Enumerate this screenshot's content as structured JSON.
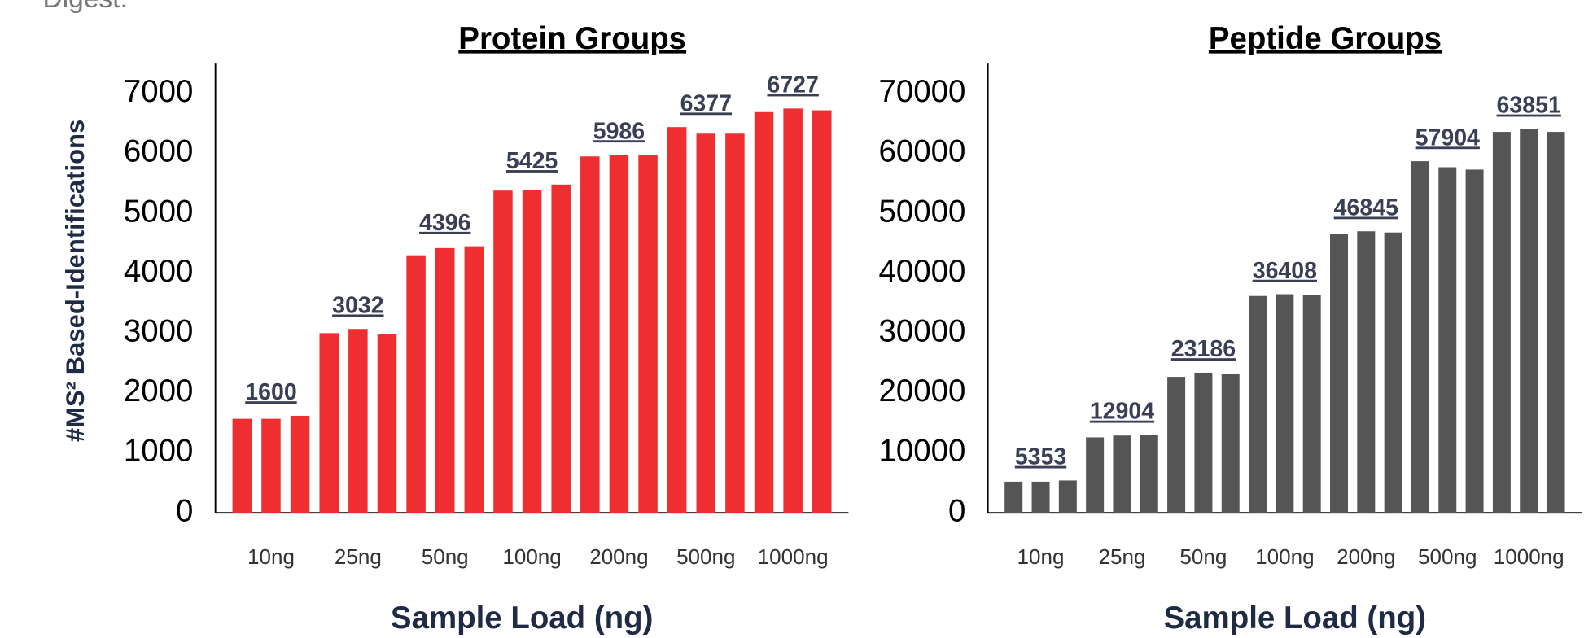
{
  "caption": "Digest:",
  "chart_data": [
    {
      "type": "bar",
      "title": "Protein Groups",
      "y_label": "#MS² Based-Identifications",
      "x_label": "Sample Load (ng)",
      "categories": [
        null,
        "10ng",
        null,
        null,
        "25ng",
        null,
        null,
        "50ng",
        null,
        null,
        "100ng",
        null,
        null,
        "200ng",
        null,
        null,
        "500ng",
        null,
        null,
        "1000ng",
        null
      ],
      "values": [
        1570,
        1570,
        1620,
        3000,
        3070,
        2990,
        4300,
        4420,
        4450,
        5380,
        5390,
        5480,
        5950,
        5970,
        5980,
        6440,
        6330,
        6330,
        6690,
        6750,
        6720
      ],
      "group_means": [
        1600,
        3032,
        4396,
        5425,
        5986,
        6377,
        6727
      ],
      "color": "#ee2e31",
      "ylim": [
        0,
        7500
      ],
      "yticks": [
        0,
        1000,
        2000,
        3000,
        4000,
        5000,
        6000,
        7000
      ],
      "grid": false
    },
    {
      "type": "bar",
      "title": "Peptide Groups",
      "x_label": "Sample Load (ng)",
      "categories": [
        null,
        "10ng",
        null,
        null,
        "25ng",
        null,
        null,
        "50ng",
        null,
        null,
        "100ng",
        null,
        null,
        "200ng",
        null,
        null,
        "500ng",
        null,
        null,
        "1000ng",
        null
      ],
      "values": [
        5200,
        5200,
        5400,
        12600,
        12900,
        13000,
        22700,
        23400,
        23200,
        36200,
        36500,
        36300,
        46600,
        47000,
        46800,
        58700,
        57700,
        57300,
        63600,
        64100,
        63600
      ],
      "group_means": [
        5353,
        12904,
        23186,
        36408,
        46845,
        57904,
        63851
      ],
      "color": "#555555",
      "ylim": [
        0,
        75000
      ],
      "yticks": [
        0,
        10000,
        20000,
        30000,
        40000,
        50000,
        60000,
        70000
      ],
      "grid": false
    }
  ]
}
